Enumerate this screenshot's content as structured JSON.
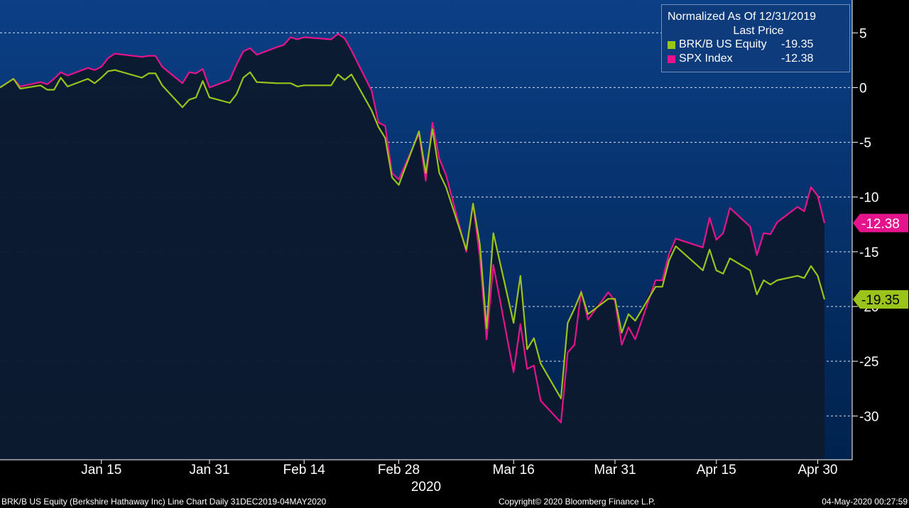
{
  "chart_data": {
    "type": "line",
    "legend": {
      "title_line1": "Normalized As Of 12/31/2019",
      "title_line2": "Last Price",
      "placement": "top-right",
      "entries": [
        {
          "label": "BRK/B US Equity",
          "value": "-19.35"
        },
        {
          "label": "SPX Index",
          "value": "-12.38"
        }
      ]
    },
    "x_dates": [
      "2019-12-31",
      "2020-01-02",
      "2020-01-03",
      "2020-01-06",
      "2020-01-07",
      "2020-01-08",
      "2020-01-09",
      "2020-01-10",
      "2020-01-13",
      "2020-01-14",
      "2020-01-15",
      "2020-01-16",
      "2020-01-17",
      "2020-01-21",
      "2020-01-22",
      "2020-01-23",
      "2020-01-24",
      "2020-01-27",
      "2020-01-28",
      "2020-01-29",
      "2020-01-30",
      "2020-01-31",
      "2020-02-03",
      "2020-02-04",
      "2020-02-05",
      "2020-02-06",
      "2020-02-07",
      "2020-02-10",
      "2020-02-11",
      "2020-02-12",
      "2020-02-13",
      "2020-02-14",
      "2020-02-18",
      "2020-02-19",
      "2020-02-20",
      "2020-02-21",
      "2020-02-24",
      "2020-02-25",
      "2020-02-26",
      "2020-02-27",
      "2020-02-28",
      "2020-03-02",
      "2020-03-03",
      "2020-03-04",
      "2020-03-05",
      "2020-03-06",
      "2020-03-09",
      "2020-03-10",
      "2020-03-11",
      "2020-03-12",
      "2020-03-13",
      "2020-03-16",
      "2020-03-17",
      "2020-03-18",
      "2020-03-19",
      "2020-03-20",
      "2020-03-23",
      "2020-03-24",
      "2020-03-25",
      "2020-03-26",
      "2020-03-27",
      "2020-03-30",
      "2020-03-31",
      "2020-04-01",
      "2020-04-02",
      "2020-04-03",
      "2020-04-06",
      "2020-04-07",
      "2020-04-08",
      "2020-04-09",
      "2020-04-13",
      "2020-04-14",
      "2020-04-15",
      "2020-04-16",
      "2020-04-17",
      "2020-04-20",
      "2020-04-21",
      "2020-04-22",
      "2020-04-23",
      "2020-04-24",
      "2020-04-27",
      "2020-04-28",
      "2020-04-29",
      "2020-04-30",
      "2020-05-01"
    ],
    "series": [
      {
        "name": "BRK/B US Equity",
        "color": "#9ac31c",
        "last_label": "-19.35",
        "values": [
          0.0,
          0.8,
          -0.1,
          0.2,
          -0.2,
          -0.2,
          0.9,
          0.1,
          0.8,
          0.4,
          0.9,
          1.5,
          1.6,
          0.9,
          1.3,
          1.3,
          0.2,
          -1.8,
          -1.1,
          -0.9,
          0.6,
          -0.9,
          -1.4,
          -0.6,
          0.9,
          1.4,
          0.5,
          0.4,
          0.4,
          0.4,
          0.1,
          0.2,
          0.2,
          1.2,
          0.7,
          1.2,
          -2.1,
          -3.6,
          -4.6,
          -8.2,
          -8.9,
          -4.0,
          -7.8,
          -3.8,
          -7.8,
          -9.1,
          -14.8,
          -10.6,
          -14.3,
          -22.0,
          -13.3,
          -21.5,
          -17.2,
          -23.9,
          -22.9,
          -25.2,
          -28.4,
          -21.5,
          -20.2,
          -18.7,
          -20.7,
          -19.3,
          -19.3,
          -22.4,
          -20.7,
          -21.3,
          -18.2,
          -18.2,
          -15.8,
          -14.5,
          -16.7,
          -14.8,
          -16.7,
          -17.0,
          -15.6,
          -16.7,
          -18.9,
          -17.6,
          -18.0,
          -17.6,
          -17.2,
          -17.4,
          -16.3,
          -17.2,
          -19.35
        ]
      },
      {
        "name": "SPX Index",
        "color": "#e5148c",
        "last_label": "-12.38",
        "values": [
          0.0,
          0.8,
          0.1,
          0.5,
          0.3,
          0.8,
          1.4,
          1.1,
          1.8,
          1.6,
          1.9,
          2.7,
          3.1,
          2.8,
          2.9,
          2.9,
          1.9,
          0.4,
          1.4,
          1.3,
          1.7,
          0.0,
          0.7,
          2.1,
          3.3,
          3.6,
          3.0,
          3.7,
          3.9,
          4.6,
          4.4,
          4.6,
          4.4,
          4.9,
          4.5,
          3.4,
          -0.3,
          -3.2,
          -3.5,
          -7.8,
          -8.4,
          -4.2,
          -8.5,
          -3.2,
          -6.5,
          -8.0,
          -15.0,
          -10.6,
          -15.5,
          -23.0,
          -16.2,
          -26.0,
          -21.6,
          -25.7,
          -25.4,
          -28.6,
          -30.6,
          -24.2,
          -23.5,
          -18.6,
          -21.2,
          -18.7,
          -19.5,
          -23.5,
          -21.9,
          -23.0,
          -17.6,
          -17.6,
          -15.2,
          -13.8,
          -14.6,
          -11.9,
          -13.9,
          -13.3,
          -11.0,
          -12.7,
          -15.3,
          -13.3,
          -13.4,
          -12.3,
          -10.9,
          -11.3,
          -9.1,
          -9.9,
          -12.38
        ]
      }
    ],
    "y_ticks": [
      "5",
      "0",
      "-5",
      "-10",
      "-15",
      "-20",
      "-25",
      "-30"
    ],
    "ylim": [
      -34,
      8
    ],
    "x_tick_labels": [
      {
        "date": "2020-01-15",
        "label": "Jan 15"
      },
      {
        "date": "2020-01-31",
        "label": "Jan 31"
      },
      {
        "date": "2020-02-14",
        "label": "Feb 14"
      },
      {
        "date": "2020-02-28",
        "label": "Feb 28"
      },
      {
        "date": "2020-03-16",
        "label": "Mar 16"
      },
      {
        "date": "2020-03-31",
        "label": "Mar 31"
      },
      {
        "date": "2020-04-15",
        "label": "Apr 15"
      },
      {
        "date": "2020-04-30",
        "label": "Apr 30"
      }
    ],
    "x_year_label": "2020",
    "grid": "horizontal dashed",
    "colors": {
      "background_top": "#0b3f86",
      "background_bottom": "#00224d",
      "fill_below": "#0b1a2e"
    }
  },
  "footer": {
    "left": "BRK/B US Equity (Berkshire Hathaway Inc) Line Chart  Daily 31DEC2019-04MAY2020",
    "center": "Copyright© 2020 Bloomberg Finance L.P.",
    "right": "04-May-2020 00:27:59"
  }
}
